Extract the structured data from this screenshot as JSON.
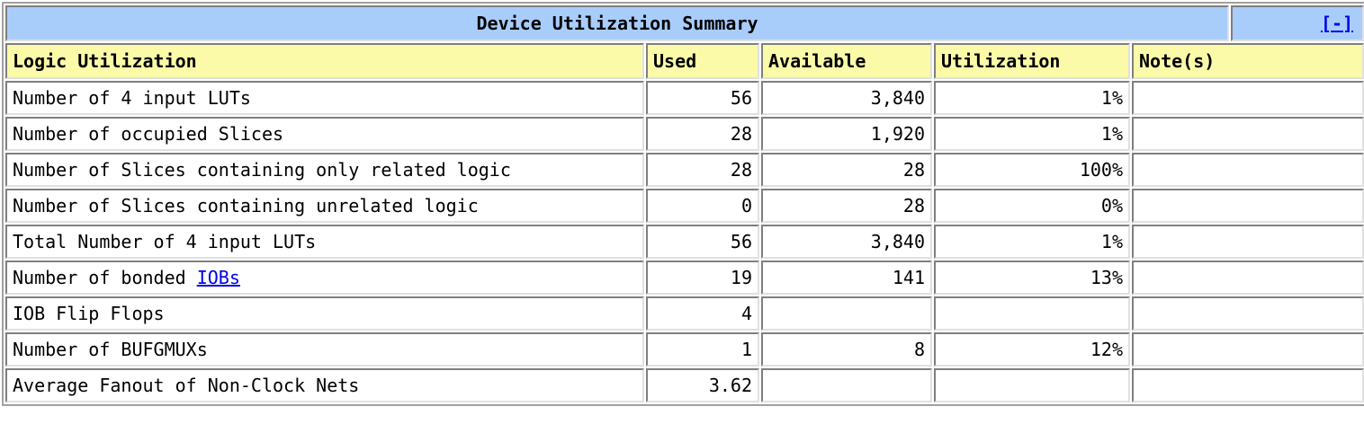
{
  "summary": {
    "title": "Device Utilization Summary",
    "toggle_label": "[-]",
    "headers": {
      "logic": "Logic Utilization",
      "used": "Used",
      "available": "Available",
      "utilization": "Utilization",
      "notes": "Note(s)"
    },
    "rows": [
      {
        "label": "Number of 4 input LUTs",
        "used": "56",
        "available": "3,840",
        "utilization": "1%",
        "notes": ""
      },
      {
        "label": "Number of occupied Slices",
        "used": "28",
        "available": "1,920",
        "utilization": "1%",
        "notes": ""
      },
      {
        "label": "Number of Slices containing only related logic",
        "used": "28",
        "available": "28",
        "utilization": "100%",
        "notes": ""
      },
      {
        "label": "Number of Slices containing unrelated logic",
        "used": "0",
        "available": "28",
        "utilization": "0%",
        "notes": ""
      },
      {
        "label": "Total Number of 4 input LUTs",
        "used": "56",
        "available": "3,840",
        "utilization": "1%",
        "notes": ""
      },
      {
        "label_prefix": "Number of bonded ",
        "label_link": "IOBs",
        "used": "19",
        "available": "141",
        "utilization": "13%",
        "notes": ""
      },
      {
        "label": "IOB Flip Flops",
        "used": "4",
        "available": "",
        "utilization": "",
        "notes": ""
      },
      {
        "label": "Number of BUFGMUXs",
        "used": "1",
        "available": "8",
        "utilization": "12%",
        "notes": ""
      },
      {
        "label": "Average Fanout of Non-Clock Nets",
        "used": "3.62",
        "available": "",
        "utilization": "",
        "notes": ""
      }
    ]
  },
  "colors": {
    "title_bg": "#a9cdfa",
    "header_bg": "#fafaa8",
    "link": "#0000ee"
  }
}
